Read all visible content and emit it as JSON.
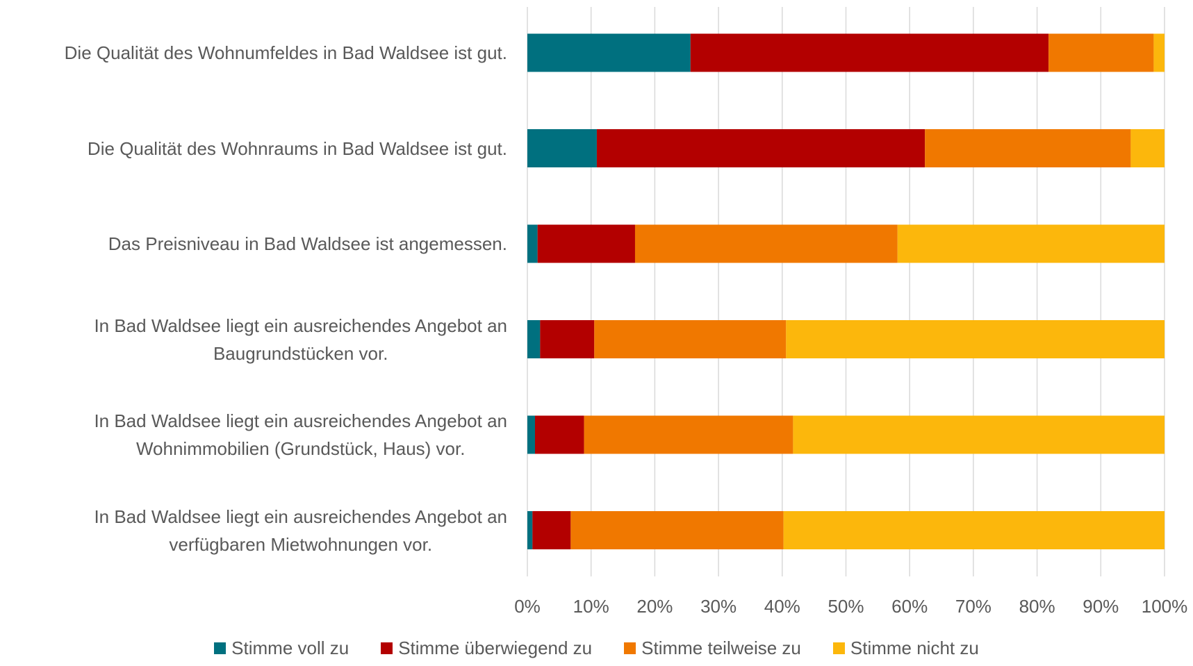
{
  "chart_data": {
    "type": "stacked_bar_horizontal",
    "categories": [
      "Die Qualität des Wohnumfeldes in Bad Waldsee ist gut.",
      "Die Qualität des Wohnraums in Bad Waldsee ist gut.",
      "Das Preisniveau in Bad Waldsee ist angemessen.",
      "In Bad Waldsee liegt ein ausreichendes Angebot an\nBaugrundstücken vor.",
      "In Bad Waldsee liegt ein ausreichendes Angebot an\nWohnimmobilien (Grundstück, Haus) vor.",
      "In Bad Waldsee liegt ein ausreichendes Angebot an\nverfügbaren Mietwohnungen vor."
    ],
    "series": [
      {
        "name": "Stimme voll zu",
        "color": "#00707f",
        "values": [
          25.6,
          10.9,
          1.6,
          2.0,
          1.2,
          0.8
        ]
      },
      {
        "name": "Stimme überwiegend zu",
        "color": "#b30000",
        "values": [
          56.2,
          51.5,
          15.3,
          8.5,
          7.7,
          6.0
        ]
      },
      {
        "name": "Stimme teilweise zu",
        "color": "#f07800",
        "values": [
          16.5,
          32.3,
          41.2,
          30.1,
          32.8,
          33.4
        ]
      },
      {
        "name": "Stimme nicht zu",
        "color": "#fcb70c",
        "values": [
          1.7,
          5.3,
          41.9,
          59.4,
          58.3,
          59.8
        ]
      }
    ],
    "xlim": [
      0,
      100
    ],
    "xticks": [
      {
        "value": 0,
        "label": "0%"
      },
      {
        "value": 10,
        "label": "10%"
      },
      {
        "value": 20,
        "label": "20%"
      },
      {
        "value": 30,
        "label": "30%"
      },
      {
        "value": 40,
        "label": "40%"
      },
      {
        "value": 50,
        "label": "50%"
      },
      {
        "value": 60,
        "label": "60%"
      },
      {
        "value": 70,
        "label": "70%"
      },
      {
        "value": 80,
        "label": "80%"
      },
      {
        "value": 90,
        "label": "90%"
      },
      {
        "value": 100,
        "label": "100%"
      }
    ],
    "grid": true,
    "legend": "bottom"
  }
}
